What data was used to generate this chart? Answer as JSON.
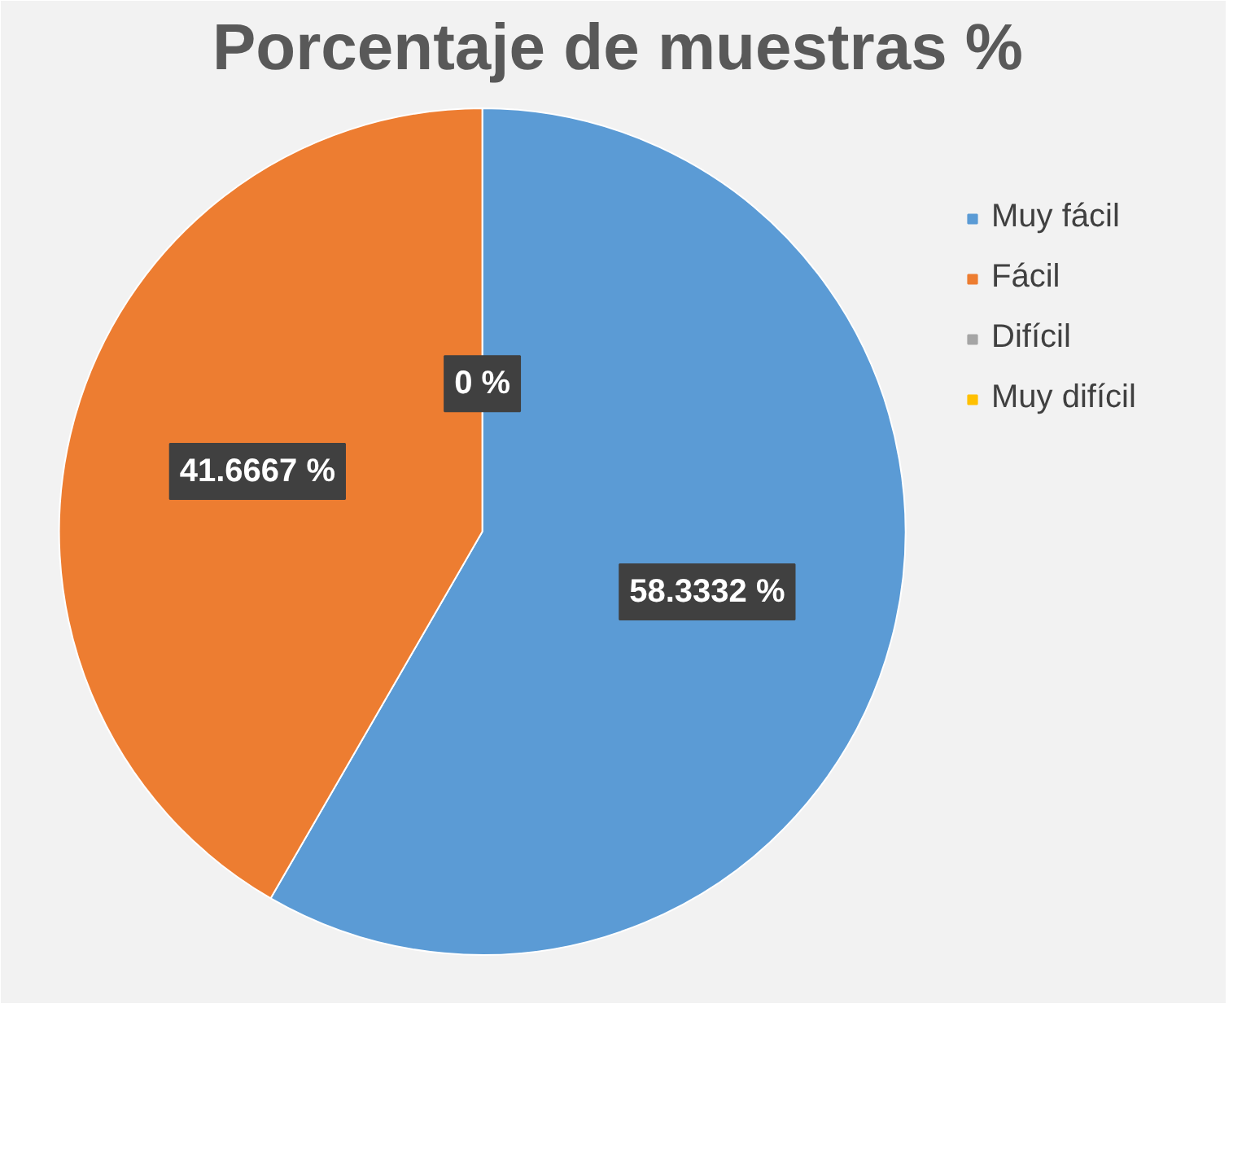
{
  "chart_data": {
    "type": "pie",
    "title": "Porcentaje de muestras %",
    "categories": [
      "Muy fácil",
      "Fácil",
      "Difícil",
      "Muy difícil"
    ],
    "values": [
      58.3332,
      41.6667,
      0,
      0
    ],
    "colors": [
      "#5b9bd5",
      "#ed7d31",
      "#a5a5a5",
      "#ffc000"
    ],
    "value_labels": [
      "58.3332 %",
      "41.6667 %",
      "0 %",
      null
    ],
    "legend": "right"
  }
}
